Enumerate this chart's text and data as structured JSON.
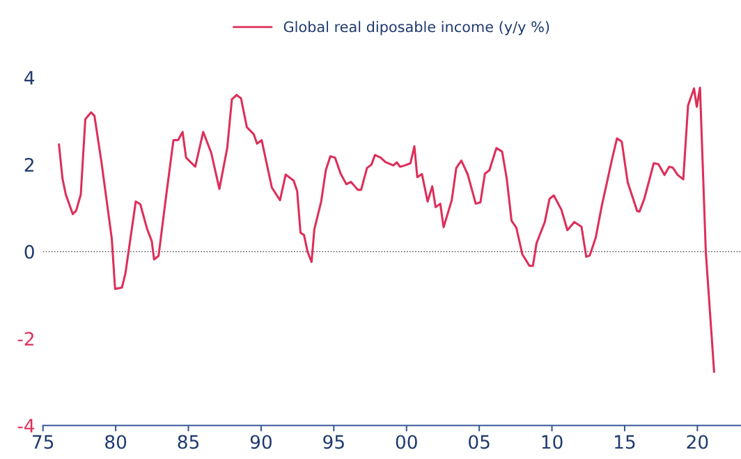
{
  "chart_data": {
    "type": "line",
    "legend": "top",
    "xlim": [
      1975,
      2023
    ],
    "ylim": [
      -4,
      4
    ],
    "xticks": [
      {
        "value": 1975,
        "label": "75"
      },
      {
        "value": 1980,
        "label": "80"
      },
      {
        "value": 1985,
        "label": "85"
      },
      {
        "value": 1990,
        "label": "90"
      },
      {
        "value": 1995,
        "label": "95"
      },
      {
        "value": 2000,
        "label": "00"
      },
      {
        "value": 2005,
        "label": "05"
      },
      {
        "value": 2010,
        "label": "10"
      },
      {
        "value": 2015,
        "label": "15"
      },
      {
        "value": 2020,
        "label": "20"
      }
    ],
    "yticks": [
      -4,
      -2,
      0,
      2,
      4
    ],
    "ref_lines": [
      {
        "axis": "y",
        "value": 0,
        "color": "#555555",
        "line_style": "dotted"
      }
    ],
    "series": [
      {
        "name": "Global real diposable income (y/y %)",
        "color": "#dc2f5a",
        "x": [
          1976.1,
          1976.34,
          1976.57,
          1977.05,
          1977.28,
          1977.6,
          1977.91,
          1978.31,
          1978.54,
          1979.02,
          1979.73,
          1979.96,
          1980.43,
          1980.67,
          1981.38,
          1981.69,
          1982.17,
          1982.48,
          1982.64,
          1982.95,
          1983.42,
          1983.97,
          1984.29,
          1984.6,
          1984.84,
          1985.47,
          1986.02,
          1986.57,
          1987.13,
          1987.67,
          1987.99,
          1988.31,
          1988.62,
          1989.02,
          1989.49,
          1989.72,
          1990.04,
          1990.74,
          1991.3,
          1991.69,
          1992.24,
          1992.48,
          1992.71,
          1992.95,
          1993.19,
          1993.47,
          1993.66,
          1994.13,
          1994.45,
          1994.76,
          1995.08,
          1995.47,
          1995.86,
          1996.18,
          1996.65,
          1996.88,
          1997.28,
          1997.59,
          1997.83,
          1998.22,
          1998.54,
          1999.09,
          1999.33,
          1999.56,
          1999.88,
          2000.27,
          2000.54,
          2000.74,
          2001.06,
          2001.45,
          2001.77,
          2002.0,
          2002.32,
          2002.55,
          2003.11,
          2003.42,
          2003.77,
          2004.21,
          2004.76,
          2005.08,
          2005.39,
          2005.7,
          2006.18,
          2006.57,
          2006.89,
          2007.22,
          2007.55,
          2007.96,
          2008.45,
          2008.69,
          2008.94,
          2009.51,
          2009.83,
          2010.13,
          2010.65,
          2011.06,
          2011.54,
          2012.03,
          2012.36,
          2012.6,
          2013.01,
          2013.42,
          2014.15,
          2014.47,
          2014.8,
          2015.21,
          2015.86,
          2016.02,
          2016.35,
          2017.0,
          2017.32,
          2017.74,
          2018.06,
          2018.3,
          2018.65,
          2019.03,
          2019.36,
          2019.77,
          2019.96,
          2020.18,
          2020.58,
          2021.15
        ],
        "values": [
          2.46,
          1.68,
          1.31,
          0.86,
          0.94,
          1.31,
          3.04,
          3.2,
          3.12,
          2.06,
          0.3,
          -0.86,
          -0.83,
          -0.5,
          1.15,
          1.09,
          0.51,
          0.24,
          -0.18,
          -0.1,
          1.15,
          2.56,
          2.56,
          2.75,
          2.16,
          1.95,
          2.75,
          2.27,
          1.44,
          2.38,
          3.5,
          3.6,
          3.52,
          2.86,
          2.7,
          2.48,
          2.56,
          1.47,
          1.18,
          1.77,
          1.63,
          1.39,
          0.43,
          0.38,
          0.0,
          -0.24,
          0.51,
          1.15,
          1.87,
          2.19,
          2.16,
          1.79,
          1.55,
          1.6,
          1.42,
          1.42,
          1.92,
          2.0,
          2.22,
          2.16,
          2.06,
          1.98,
          2.05,
          1.95,
          1.98,
          2.03,
          2.42,
          1.71,
          1.78,
          1.15,
          1.5,
          1.02,
          1.1,
          0.56,
          1.18,
          1.92,
          2.09,
          1.77,
          1.1,
          1.13,
          1.79,
          1.87,
          2.38,
          2.3,
          1.68,
          0.71,
          0.55,
          -0.06,
          -0.33,
          -0.33,
          0.19,
          0.68,
          1.21,
          1.29,
          0.96,
          0.49,
          0.68,
          0.57,
          -0.12,
          -0.09,
          0.32,
          1.04,
          2.15,
          2.6,
          2.53,
          1.59,
          0.93,
          0.92,
          1.21,
          2.03,
          2.01,
          1.76,
          1.95,
          1.93,
          1.76,
          1.66,
          3.36,
          3.75,
          3.33,
          3.77,
          -0.01,
          -2.76
        ]
      }
    ]
  }
}
